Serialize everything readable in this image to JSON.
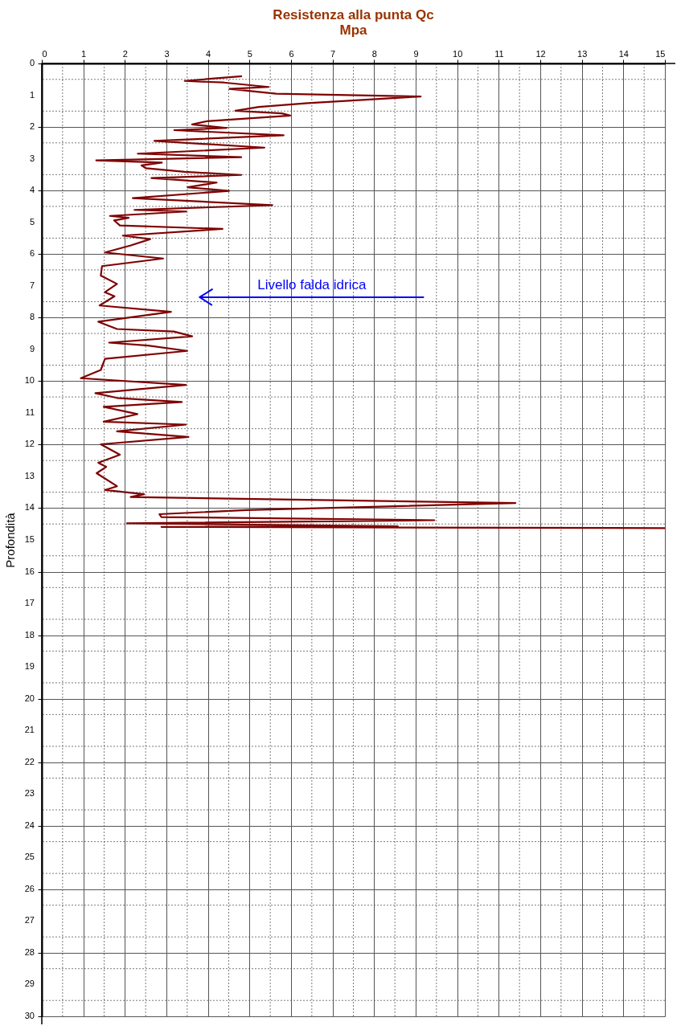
{
  "chart_data": {
    "type": "line",
    "title": [
      "Resistenza alla punta Qc",
      "Mpa"
    ],
    "ylabel": "Profondità",
    "x": [
      4.82,
      3.44,
      4.38,
      5.46,
      4.52,
      5.64,
      9.12,
      6.4,
      5.22,
      4.66,
      5.78,
      5.98,
      3.97,
      3.62,
      4.45,
      3.19,
      5.82,
      2.71,
      5.36,
      2.31,
      4.8,
      1.31,
      2.89,
      2.4,
      2.51,
      3.44,
      4.8,
      2.64,
      4.21,
      3.51,
      4.51,
      2.19,
      5.55,
      2.23,
      3.48,
      1.64,
      2.09,
      1.74,
      1.88,
      4.35,
      1.95,
      2.61,
      2.14,
      1.52,
      2.92,
      1.45,
      1.42,
      1.81,
      1.52,
      1.75,
      1.39,
      3.11,
      1.94,
      1.36,
      1.81,
      3.18,
      3.62,
      1.62,
      2.56,
      3.5,
      1.52,
      1.42,
      0.94,
      3.47,
      1.29,
      1.81,
      3.37,
      1.49,
      2.3,
      1.49,
      3.47,
      1.81,
      3.53,
      1.42,
      1.88,
      1.36,
      1.55,
      1.32,
      1.81,
      1.52,
      2.46,
      2.14,
      11.4,
      4.93,
      2.83,
      2.88,
      9.45,
      2.05,
      8.57,
      2.88,
      15.0
    ],
    "series": [
      {
        "color": "#800000",
        "values": [
          0.4,
          0.55,
          0.6,
          0.74,
          0.8,
          0.95,
          1.04,
          1.25,
          1.37,
          1.49,
          1.57,
          1.64,
          1.82,
          1.92,
          2.03,
          2.1,
          2.26,
          2.44,
          2.65,
          2.84,
          2.95,
          3.05,
          3.12,
          3.21,
          3.3,
          3.41,
          3.51,
          3.61,
          3.75,
          3.9,
          4.01,
          4.24,
          4.46,
          4.61,
          4.66,
          4.8,
          4.86,
          4.94,
          5.1,
          5.21,
          5.42,
          5.53,
          5.73,
          5.95,
          6.14,
          6.38,
          6.68,
          6.94,
          7.2,
          7.33,
          7.62,
          7.82,
          8.03,
          8.13,
          8.36,
          8.44,
          8.59,
          8.79,
          8.88,
          9.05,
          9.3,
          9.65,
          9.91,
          10.12,
          10.38,
          10.53,
          10.66,
          10.81,
          11.04,
          11.28,
          11.37,
          11.58,
          11.76,
          11.99,
          12.32,
          12.57,
          12.7,
          12.9,
          13.31,
          13.43,
          13.56,
          13.65,
          13.84,
          14.06,
          14.19,
          14.28,
          14.38,
          14.48,
          14.57,
          14.59,
          14.63
        ]
      }
    ],
    "xlim": [
      0,
      15
    ],
    "xticks": [
      0,
      1,
      2,
      3,
      4,
      5,
      6,
      7,
      8,
      9,
      10,
      11,
      12,
      13,
      14,
      15
    ],
    "ylim": [
      30,
      0
    ],
    "yticks": [
      0,
      1,
      2,
      3,
      4,
      5,
      6,
      7,
      8,
      9,
      10,
      11,
      12,
      13,
      14,
      15,
      16,
      17,
      18,
      19,
      20,
      21,
      22,
      23,
      24,
      25,
      26,
      27,
      28,
      29,
      30
    ],
    "grid": true,
    "marker": "none",
    "line_style": "solid",
    "ref_lines": [
      {
        "axis": "y",
        "value": 7.36,
        "label": "Livello falda idrica",
        "color": "#0000ff"
      }
    ]
  }
}
